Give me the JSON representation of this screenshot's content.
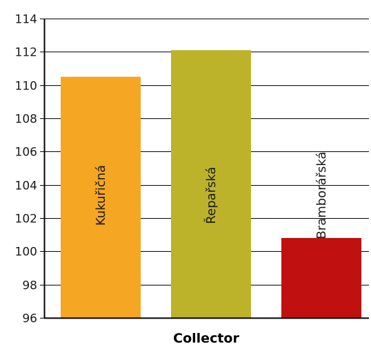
{
  "chart_data": {
    "type": "bar",
    "categories": [
      "Kukuřičná",
      "Řepařská",
      "Bramborářská"
    ],
    "values": [
      110.5,
      112.1,
      100.8
    ],
    "colors": [
      "#f5a623",
      "#bdb32a",
      "#c0100f"
    ],
    "title": "",
    "xlabel": "Collector",
    "ylabel": "",
    "ylim": [
      96,
      114
    ],
    "yticks": [
      96,
      98,
      100,
      102,
      104,
      106,
      108,
      110,
      112,
      114
    ],
    "grid": true,
    "legend": "none",
    "bar_labels": "inside-vertical"
  }
}
